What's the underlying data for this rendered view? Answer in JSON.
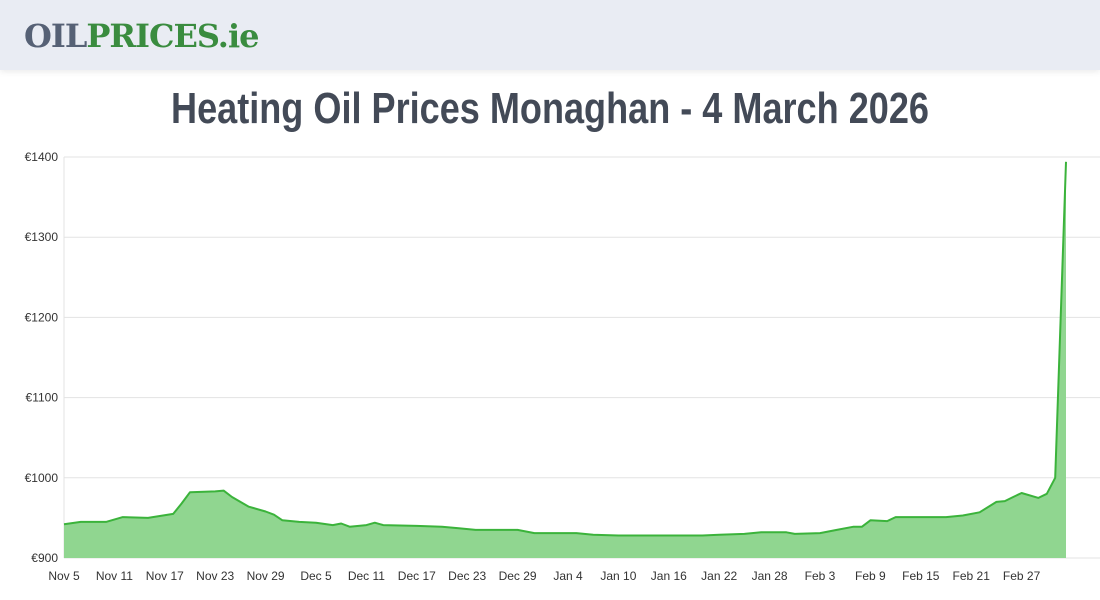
{
  "header": {
    "logo_part1": "OIL",
    "logo_part2": "PRICES.ie"
  },
  "title": "Heating Oil Prices Monaghan - 4 March 2026",
  "chart_data": {
    "type": "area",
    "title": "Heating Oil Prices Monaghan - 4 March 2026",
    "ylim": [
      900,
      1400
    ],
    "y_ticks": [
      "€900",
      "€1000",
      "€1100",
      "€1200",
      "€1300",
      "€1400"
    ],
    "x_ticks": [
      "Nov 5",
      "Nov 11",
      "Nov 17",
      "Nov 23",
      "Nov 29",
      "Dec 5",
      "Dec 11",
      "Dec 17",
      "Dec 23",
      "Dec 29",
      "Jan 4",
      "Jan 10",
      "Jan 16",
      "Jan 22",
      "Jan 28",
      "Feb 3",
      "Feb 9",
      "Feb 15",
      "Feb 21",
      "Feb 27"
    ],
    "grid": true,
    "color": "#3bb33b",
    "fill": "#90d690",
    "x": [
      "Nov 5",
      "Nov 7",
      "Nov 10",
      "Nov 12",
      "Nov 15",
      "Nov 18",
      "Nov 19",
      "Nov 20",
      "Nov 23",
      "Nov 24",
      "Nov 25",
      "Nov 27",
      "Nov 29",
      "Nov 30",
      "Dec 1",
      "Dec 3",
      "Dec 5",
      "Dec 7",
      "Dec 8",
      "Dec 9",
      "Dec 11",
      "Dec 12",
      "Dec 13",
      "Dec 17",
      "Dec 20",
      "Dec 22",
      "Dec 24",
      "Dec 29",
      "Dec 31",
      "Jan 5",
      "Jan 7",
      "Jan 10",
      "Jan 16",
      "Jan 20",
      "Jan 22",
      "Jan 25",
      "Jan 27",
      "Jan 30",
      "Jan 31",
      "Feb 3",
      "Feb 5",
      "Feb 7",
      "Feb 8",
      "Feb 9",
      "Feb 11",
      "Feb 12",
      "Feb 18",
      "Feb 20",
      "Feb 22",
      "Feb 24",
      "Feb 25",
      "Feb 26",
      "Feb 27",
      "Mar 1",
      "Mar 2",
      "Mar 3",
      "Mar 4"
    ],
    "values": [
      942,
      945,
      945,
      951,
      950,
      955,
      968,
      982,
      983,
      984,
      976,
      964,
      958,
      954,
      947,
      945,
      944,
      941,
      943,
      939,
      941,
      944,
      941,
      940,
      939,
      937,
      935,
      935,
      931,
      931,
      929,
      928,
      928,
      928,
      929,
      930,
      932,
      932,
      930,
      931,
      935,
      939,
      939,
      947,
      946,
      951,
      951,
      953,
      957,
      970,
      971,
      976,
      981,
      975,
      980,
      1000,
      1394
    ]
  }
}
